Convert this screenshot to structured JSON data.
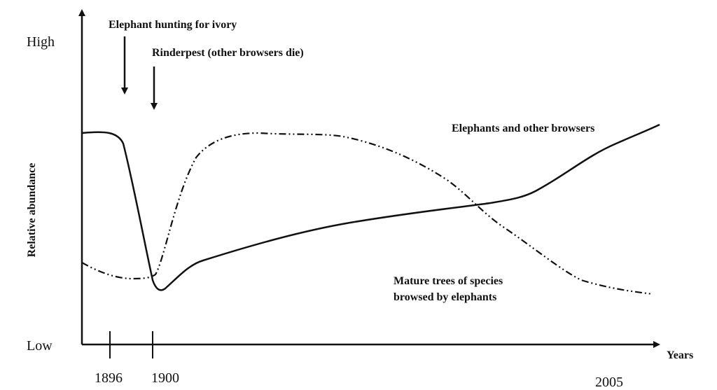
{
  "y_axis": {
    "high": "High",
    "low": "Low",
    "label": "Relative abundance"
  },
  "x_axis": {
    "label": "Years",
    "ticks": [
      "1896",
      "1900",
      "2005"
    ]
  },
  "annotations": [
    "Elephant hunting for ivory",
    "Rinderpest (other browsers die)"
  ],
  "curves": {
    "elephants": "Elephants and other browsers",
    "trees": [
      "Mature trees of species",
      "browsed by elephants"
    ]
  }
}
